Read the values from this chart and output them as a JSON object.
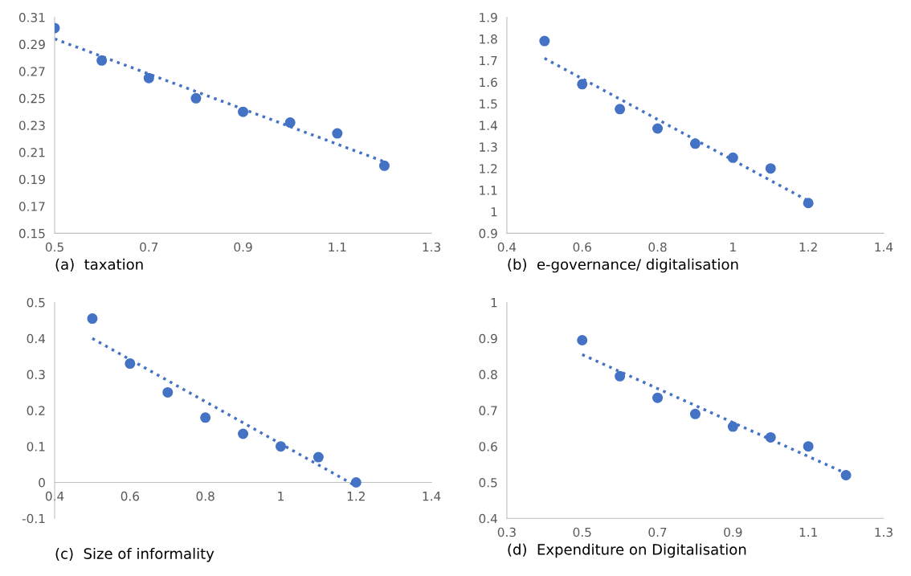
{
  "chart_data": [
    {
      "type": "scatter",
      "xlabel": "(a)  taxation",
      "grid": false,
      "xlim": [
        0.5,
        1.3
      ],
      "xticks": [
        0.5,
        0.7,
        0.9,
        1.1,
        1.3
      ],
      "ylim": [
        0.15,
        0.31
      ],
      "yticks": [
        0.15,
        0.17,
        0.19,
        0.21,
        0.23,
        0.25,
        0.27,
        0.29,
        0.31
      ],
      "series": [
        {
          "marker": "circle",
          "color": "#4472c4",
          "x": [
            0.5,
            0.6,
            0.7,
            0.8,
            0.9,
            1.0,
            1.1,
            1.2
          ],
          "values": [
            0.302,
            0.278,
            0.265,
            0.25,
            0.24,
            0.232,
            0.224,
            0.2
          ]
        },
        {
          "type": "line",
          "line_style": "dotted",
          "marker": "none",
          "color": "#4472c4",
          "x": [
            0.5,
            1.2
          ],
          "values": [
            0.294,
            0.203
          ]
        }
      ]
    },
    {
      "type": "scatter",
      "xlabel": "(b)  e-governance/ digitalisation",
      "grid": false,
      "xlim": [
        0.4,
        1.4
      ],
      "xticks": [
        0.4,
        0.6,
        0.8,
        1,
        1.2,
        1.4
      ],
      "ylim": [
        0.9,
        1.9
      ],
      "yticks": [
        0.9,
        1,
        1.1,
        1.2,
        1.3,
        1.4,
        1.5,
        1.6,
        1.7,
        1.8,
        1.9
      ],
      "series": [
        {
          "marker": "circle",
          "color": "#4472c4",
          "x": [
            0.5,
            0.6,
            0.7,
            0.8,
            0.9,
            1.0,
            1.1,
            1.2
          ],
          "values": [
            1.79,
            1.59,
            1.475,
            1.385,
            1.315,
            1.25,
            1.2,
            1.04
          ]
        },
        {
          "type": "line",
          "line_style": "dotted",
          "marker": "none",
          "color": "#4472c4",
          "x": [
            0.5,
            1.2
          ],
          "values": [
            1.71,
            1.05
          ]
        }
      ]
    },
    {
      "type": "scatter",
      "xlabel": "(c)  Size of informality",
      "grid": false,
      "xlim": [
        0.4,
        1.4
      ],
      "xticks": [
        0.4,
        0.6,
        0.8,
        1,
        1.2,
        1.4
      ],
      "ylim": [
        -0.1,
        0.5
      ],
      "yticks": [
        -0.1,
        0,
        0.1,
        0.2,
        0.3,
        0.4,
        0.5
      ],
      "series": [
        {
          "marker": "circle",
          "color": "#4472c4",
          "x": [
            0.5,
            0.6,
            0.7,
            0.8,
            0.9,
            1.0,
            1.1,
            1.2
          ],
          "values": [
            0.455,
            0.33,
            0.25,
            0.18,
            0.135,
            0.1,
            0.07,
            0.0
          ]
        },
        {
          "type": "line",
          "line_style": "dotted",
          "marker": "none",
          "color": "#4472c4",
          "x": [
            0.5,
            1.2
          ],
          "values": [
            0.4,
            -0.01
          ]
        }
      ]
    },
    {
      "type": "scatter",
      "xlabel": "(d)  Expenditure on Digitalisation",
      "grid": false,
      "xlim": [
        0.3,
        1.3
      ],
      "xticks": [
        0.3,
        0.5,
        0.7,
        0.9,
        1.1,
        1.3
      ],
      "ylim": [
        0.4,
        1
      ],
      "yticks": [
        0.4,
        0.5,
        0.6,
        0.7,
        0.8,
        0.9,
        1
      ],
      "series": [
        {
          "marker": "circle",
          "color": "#4472c4",
          "x": [
            0.5,
            0.6,
            0.7,
            0.8,
            0.9,
            1.0,
            1.1,
            1.2
          ],
          "values": [
            0.895,
            0.795,
            0.735,
            0.69,
            0.655,
            0.625,
            0.6,
            0.52
          ]
        },
        {
          "type": "line",
          "line_style": "dotted",
          "marker": "none",
          "color": "#4472c4",
          "x": [
            0.5,
            1.2
          ],
          "values": [
            0.855,
            0.525
          ]
        }
      ]
    }
  ]
}
